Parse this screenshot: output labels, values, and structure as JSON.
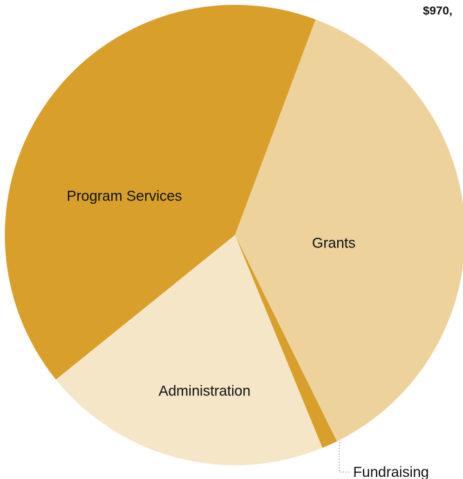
{
  "colors": {
    "program_services": "#D8A02A",
    "grants": "#EDD29C",
    "fundraising": "#D8A02A",
    "administration": "#F5E6C8",
    "leader": "#9a9a9a"
  },
  "chart_data": {
    "type": "pie",
    "title": "$970,",
    "labels": [
      "Grants",
      "Fundraising",
      "Administration",
      "Program Services"
    ],
    "values": [
      37.0,
      1.1,
      20.4,
      41.5
    ],
    "unit": "percent (estimated)",
    "start_angle_deg": 20.5,
    "direction": "clockwise",
    "annotations": [
      {
        "label": "Fundraising",
        "style": "dotted leader line"
      }
    ]
  }
}
